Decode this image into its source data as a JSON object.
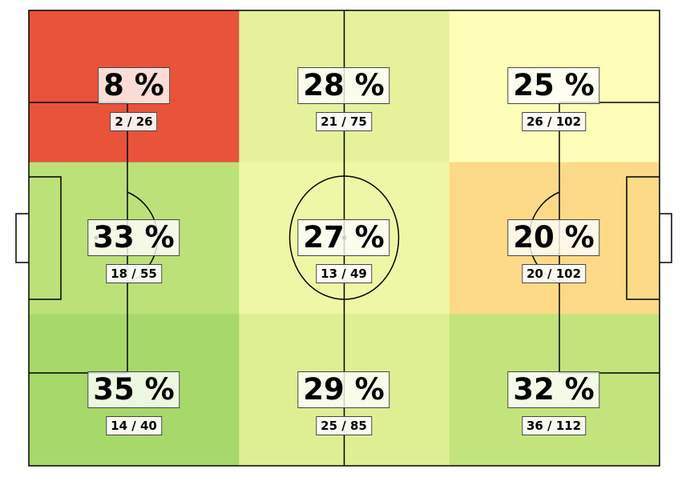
{
  "chart_data": {
    "type": "heatmap",
    "title": "",
    "rows": 3,
    "cols": 3,
    "cells": [
      {
        "row": 0,
        "col": 0,
        "pct_label": "8 %",
        "count_label": "2 / 26",
        "success": 2,
        "total": 26,
        "color": "#E8533A"
      },
      {
        "row": 0,
        "col": 1,
        "pct_label": "28 %",
        "count_label": "21 / 75",
        "success": 21,
        "total": 75,
        "color": "#E6F29B"
      },
      {
        "row": 0,
        "col": 2,
        "pct_label": "25 %",
        "count_label": "26 / 102",
        "success": 26,
        "total": 102,
        "color": "#FEFEB9"
      },
      {
        "row": 1,
        "col": 0,
        "pct_label": "33 %",
        "count_label": "18 / 55",
        "success": 18,
        "total": 55,
        "color": "#BDE179"
      },
      {
        "row": 1,
        "col": 1,
        "pct_label": "27 %",
        "count_label": "13 / 49",
        "success": 13,
        "total": 49,
        "color": "#EEF7A5"
      },
      {
        "row": 1,
        "col": 2,
        "pct_label": "20 %",
        "count_label": "20 / 102",
        "success": 20,
        "total": 102,
        "color": "#FDDA87"
      },
      {
        "row": 2,
        "col": 0,
        "pct_label": "35 %",
        "count_label": "14 / 40",
        "success": 14,
        "total": 40,
        "color": "#A7D96A"
      },
      {
        "row": 2,
        "col": 1,
        "pct_label": "29 %",
        "count_label": "25 / 85",
        "success": 25,
        "total": 85,
        "color": "#DDEF92"
      },
      {
        "row": 2,
        "col": 2,
        "pct_label": "32 %",
        "count_label": "36 / 112",
        "success": 36,
        "total": 112,
        "color": "#C3E47D"
      }
    ],
    "background": "pitch",
    "line_color": "#000000"
  }
}
